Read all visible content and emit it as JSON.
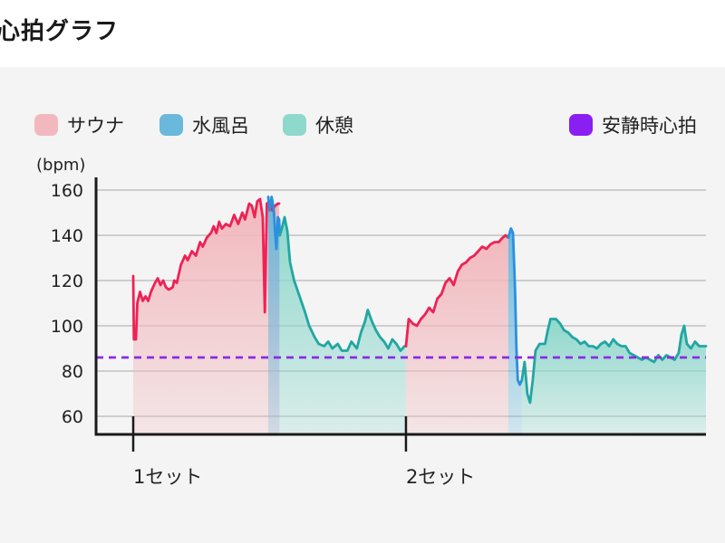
{
  "page": {
    "title": "心拍グラフ"
  },
  "colors": {
    "sauna_line": "#ee2255",
    "sauna_fill": "#f2b8bd",
    "cold_line": "#2a90e0",
    "cold_fill": "#6ab8dc",
    "rest_line": "#22a6a2",
    "rest_fill": "#8fd8cc",
    "resting_hr": "#8a2be2",
    "panel": "#f4f4f4"
  },
  "legend": {
    "items": [
      {
        "key": "sauna",
        "label": "サウナ",
        "color": "#f2b8bd"
      },
      {
        "key": "cold",
        "label": "水風呂",
        "color": "#6ab8dc"
      },
      {
        "key": "rest",
        "label": "休憩",
        "color": "#8fd8cc"
      },
      {
        "key": "resting_hr",
        "label": "安静時心拍",
        "color": "#8a1ff2"
      }
    ]
  },
  "chart_data": {
    "type": "line",
    "ylabel": "(bpm)",
    "y_ticks": [
      60,
      80,
      100,
      120,
      140,
      160
    ],
    "ylim": [
      52,
      162
    ],
    "xlim": [
      0,
      42
    ],
    "grid": true,
    "legend_position": "top",
    "x_unit": "min",
    "categories": [
      {
        "label": "1セット",
        "x": 0
      },
      {
        "label": "2セット",
        "x": 20
      }
    ],
    "resting_heart_rate": 86,
    "series": [
      {
        "name": "サウナ",
        "phase": "sauna",
        "points": [
          [
            0,
            122
          ],
          [
            0.05,
            94
          ],
          [
            0.2,
            94
          ],
          [
            0.3,
            110
          ],
          [
            0.5,
            115
          ],
          [
            0.7,
            111
          ],
          [
            0.9,
            113
          ],
          [
            1.1,
            111
          ],
          [
            1.3,
            115
          ],
          [
            1.6,
            119
          ],
          [
            1.8,
            121
          ],
          [
            2.0,
            118
          ],
          [
            2.2,
            120
          ],
          [
            2.4,
            117
          ],
          [
            2.6,
            116
          ],
          [
            2.9,
            117
          ],
          [
            3.0,
            120
          ],
          [
            3.2,
            119
          ],
          [
            3.5,
            127
          ],
          [
            3.8,
            131
          ],
          [
            4.0,
            129
          ],
          [
            4.3,
            133
          ],
          [
            4.6,
            131
          ],
          [
            4.9,
            137
          ],
          [
            5.1,
            135
          ],
          [
            5.4,
            139
          ],
          [
            5.7,
            141
          ],
          [
            5.9,
            144
          ],
          [
            6.1,
            141
          ],
          [
            6.3,
            146
          ],
          [
            6.5,
            143
          ],
          [
            6.8,
            145
          ],
          [
            7.1,
            144
          ],
          [
            7.4,
            149
          ],
          [
            7.7,
            145
          ],
          [
            8.0,
            150
          ],
          [
            8.2,
            147
          ],
          [
            8.5,
            154
          ],
          [
            8.7,
            153
          ],
          [
            8.9,
            148
          ],
          [
            9.1,
            155
          ],
          [
            9.3,
            156
          ],
          [
            9.5,
            148
          ],
          [
            9.65,
            106
          ],
          [
            9.8,
            154
          ],
          [
            10.0,
            155
          ],
          [
            10.2,
            151
          ],
          [
            10.4,
            153
          ],
          [
            10.6,
            154
          ],
          [
            10.7,
            154
          ]
        ]
      },
      {
        "name": "水風呂",
        "phase": "cold",
        "points": [
          [
            9.9,
            157
          ],
          [
            10.0,
            151
          ],
          [
            10.15,
            157
          ],
          [
            10.3,
            152
          ],
          [
            10.4,
            142
          ],
          [
            10.5,
            134
          ],
          [
            10.6,
            148
          ],
          [
            10.7,
            147
          ],
          [
            10.75,
            140
          ]
        ]
      },
      {
        "name": "休憩",
        "phase": "rest",
        "points": [
          [
            10.75,
            140
          ],
          [
            10.9,
            143
          ],
          [
            11.1,
            148
          ],
          [
            11.3,
            142
          ],
          [
            11.5,
            128
          ],
          [
            11.8,
            120
          ],
          [
            12.2,
            113
          ],
          [
            12.6,
            106
          ],
          [
            12.9,
            100
          ],
          [
            13.3,
            95
          ],
          [
            13.6,
            92
          ],
          [
            14.0,
            91
          ],
          [
            14.3,
            93
          ],
          [
            14.6,
            90
          ],
          [
            15.0,
            92
          ],
          [
            15.3,
            89
          ],
          [
            15.7,
            89
          ],
          [
            16.0,
            93
          ],
          [
            16.4,
            90
          ],
          [
            16.7,
            97
          ],
          [
            17.0,
            102
          ],
          [
            17.2,
            107
          ],
          [
            17.5,
            102
          ],
          [
            17.8,
            98
          ],
          [
            18.1,
            95
          ],
          [
            18.4,
            93
          ],
          [
            18.7,
            90
          ],
          [
            19.0,
            94
          ],
          [
            19.3,
            92
          ],
          [
            19.6,
            89
          ],
          [
            19.9,
            91
          ],
          [
            20.0,
            91
          ]
        ]
      },
      {
        "name": "サウナ",
        "phase": "sauna",
        "points": [
          [
            20.0,
            91
          ],
          [
            20.2,
            103
          ],
          [
            20.5,
            101
          ],
          [
            20.8,
            100
          ],
          [
            21.1,
            103
          ],
          [
            21.4,
            105
          ],
          [
            21.7,
            108
          ],
          [
            22.0,
            106
          ],
          [
            22.3,
            112
          ],
          [
            22.6,
            114
          ],
          [
            22.9,
            119
          ],
          [
            23.2,
            121
          ],
          [
            23.5,
            118
          ],
          [
            23.8,
            124
          ],
          [
            24.1,
            127
          ],
          [
            24.4,
            128
          ],
          [
            24.7,
            130
          ],
          [
            25.0,
            131
          ],
          [
            25.3,
            133
          ],
          [
            25.6,
            135
          ],
          [
            25.9,
            134
          ],
          [
            26.2,
            136
          ],
          [
            26.5,
            137
          ],
          [
            26.8,
            137
          ],
          [
            27.1,
            139
          ],
          [
            27.3,
            140
          ],
          [
            27.5,
            139
          ]
        ]
      },
      {
        "name": "水風呂",
        "phase": "cold",
        "points": [
          [
            27.5,
            139
          ],
          [
            27.7,
            143
          ],
          [
            27.85,
            141
          ],
          [
            28.0,
            116
          ],
          [
            28.1,
            90
          ],
          [
            28.2,
            76
          ],
          [
            28.35,
            74
          ],
          [
            28.5,
            76
          ]
        ]
      },
      {
        "name": "休憩",
        "phase": "rest",
        "points": [
          [
            28.5,
            76
          ],
          [
            28.7,
            84
          ],
          [
            28.9,
            70
          ],
          [
            29.1,
            66
          ],
          [
            29.3,
            76
          ],
          [
            29.5,
            89
          ],
          [
            29.8,
            92
          ],
          [
            30.2,
            92
          ],
          [
            30.4,
            98
          ],
          [
            30.6,
            103
          ],
          [
            31.0,
            103
          ],
          [
            31.3,
            101
          ],
          [
            31.6,
            98
          ],
          [
            31.9,
            97
          ],
          [
            32.2,
            95
          ],
          [
            32.5,
            94
          ],
          [
            32.8,
            92
          ],
          [
            33.1,
            93
          ],
          [
            33.4,
            91
          ],
          [
            33.7,
            91
          ],
          [
            34.0,
            90
          ],
          [
            34.3,
            92
          ],
          [
            34.6,
            93
          ],
          [
            34.9,
            91
          ],
          [
            35.2,
            94
          ],
          [
            35.5,
            92
          ],
          [
            35.8,
            91
          ],
          [
            36.1,
            91
          ],
          [
            36.4,
            88
          ],
          [
            36.7,
            87
          ],
          [
            37.0,
            86
          ],
          [
            37.3,
            85
          ],
          [
            37.6,
            86
          ],
          [
            37.9,
            85
          ],
          [
            38.2,
            84
          ],
          [
            38.5,
            87
          ],
          [
            38.8,
            85
          ],
          [
            39.1,
            87
          ],
          [
            39.4,
            86
          ],
          [
            39.7,
            85
          ],
          [
            40.0,
            88
          ],
          [
            40.2,
            96
          ],
          [
            40.4,
            100
          ],
          [
            40.6,
            92
          ],
          [
            40.9,
            90
          ],
          [
            41.2,
            93
          ],
          [
            41.5,
            91
          ],
          [
            42.0,
            91
          ]
        ]
      }
    ]
  }
}
